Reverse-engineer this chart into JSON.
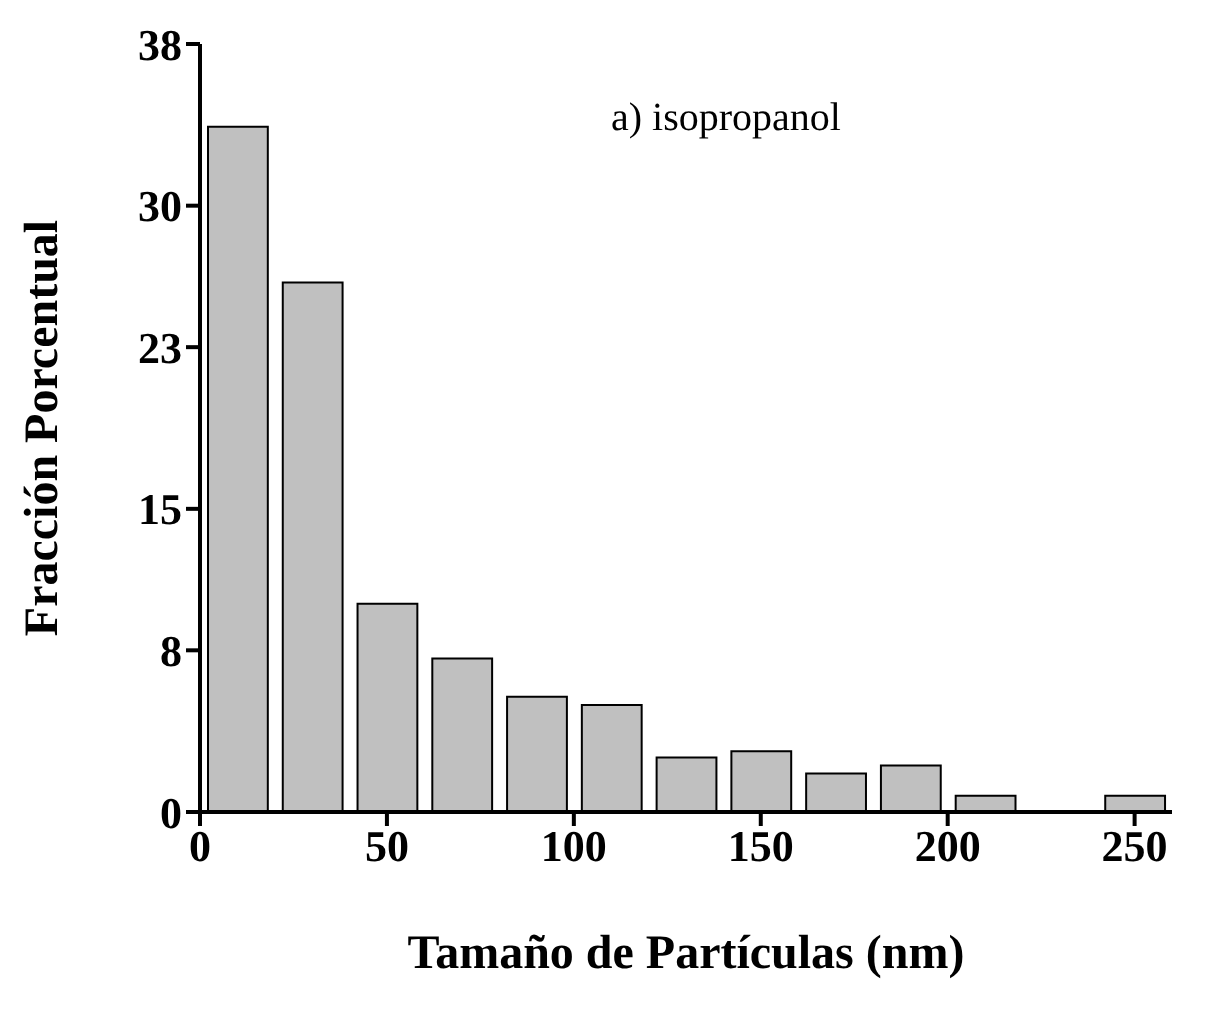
{
  "chart_data": {
    "type": "histogram",
    "xlabel": "Tamaño de Partículas (nm)",
    "ylabel": "Fracción Porcentual",
    "annotations": [
      "a) isopropanol"
    ],
    "bins": [
      0,
      20,
      40,
      60,
      80,
      100,
      120,
      140,
      160,
      180,
      200,
      220,
      240,
      260
    ],
    "values": [
      33.9,
      26.2,
      10.3,
      7.6,
      5.7,
      5.3,
      2.7,
      3.0,
      1.9,
      2.3,
      0.8,
      0,
      0.8
    ],
    "color": "#c0c0c0",
    "xlim": [
      0,
      260
    ],
    "xticks": [
      0,
      50,
      100,
      150,
      200,
      250
    ],
    "ylim": [
      0,
      38
    ],
    "yticks": [
      0,
      8,
      15,
      23,
      30,
      38
    ],
    "grid": false,
    "legend": false
  }
}
